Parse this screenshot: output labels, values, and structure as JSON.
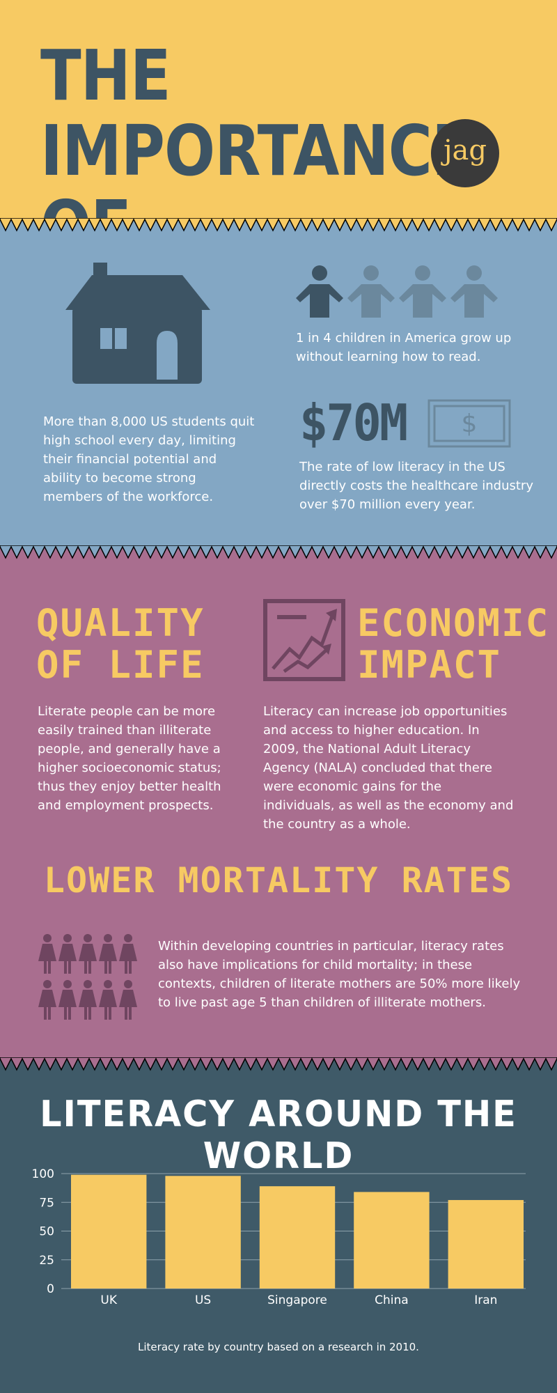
{
  "header": {
    "title_line1": "THE IMPORTANCE",
    "title_line2": "OF LITERACY",
    "logo": "jag"
  },
  "stats": {
    "dropout_text": "More than 8,000 US students quit high school every day, limiting their financial potential and ability to become strong members of the workforce.",
    "children_text": "1 in 4 children in America grow up without learning how to read.",
    "cost_value": "$70M",
    "cost_text": "The rate of low literacy in the US directly costs the healthcare industry over $70 million every year."
  },
  "quality": {
    "heading_line1": "QUALITY",
    "heading_line2": "OF LIFE",
    "text": "Literate people can be more easily trained than illiterate people, and generally have a higher socioeconomic status; thus they enjoy better health and employment prospects."
  },
  "economic": {
    "heading_line1": "ECONOMIC",
    "heading_line2": "IMPACT",
    "text": "Literacy can increase job opportunities and access to higher education. In 2009, the National Adult Literacy Agency (NALA) concluded that there were economic gains for the individuals, as well as the economy and the country as a whole."
  },
  "mortality": {
    "heading": "LOWER MORTALITY RATES",
    "text": "Within developing countries in particular, literacy rates also have implications for child mortality; in these contexts, children of literate mothers are 50% more likely to live past age 5 than children of illiterate mothers."
  },
  "world": {
    "title": "LITERACY AROUND THE WORLD",
    "caption": "Literacy rate by country based on a research in 2010."
  },
  "icons": {
    "house": "house-icon",
    "children": "children-icon",
    "money": "dollar-bill-icon",
    "chart": "growth-chart-icon",
    "mothers": "women-icon"
  },
  "colors": {
    "yellow": "#f7ca63",
    "blue": "#83a7c4",
    "purple": "#a96e8f",
    "dark": "#3f5a68"
  },
  "chart_data": {
    "type": "bar",
    "categories": [
      "UK",
      "US",
      "Singapore",
      "China",
      "Iran"
    ],
    "values": [
      99,
      98,
      89,
      84,
      77
    ],
    "yticks": [
      0,
      25,
      50,
      75,
      100
    ],
    "ylim": [
      0,
      100
    ],
    "grid": true,
    "bar_color": "#f7ca63"
  }
}
